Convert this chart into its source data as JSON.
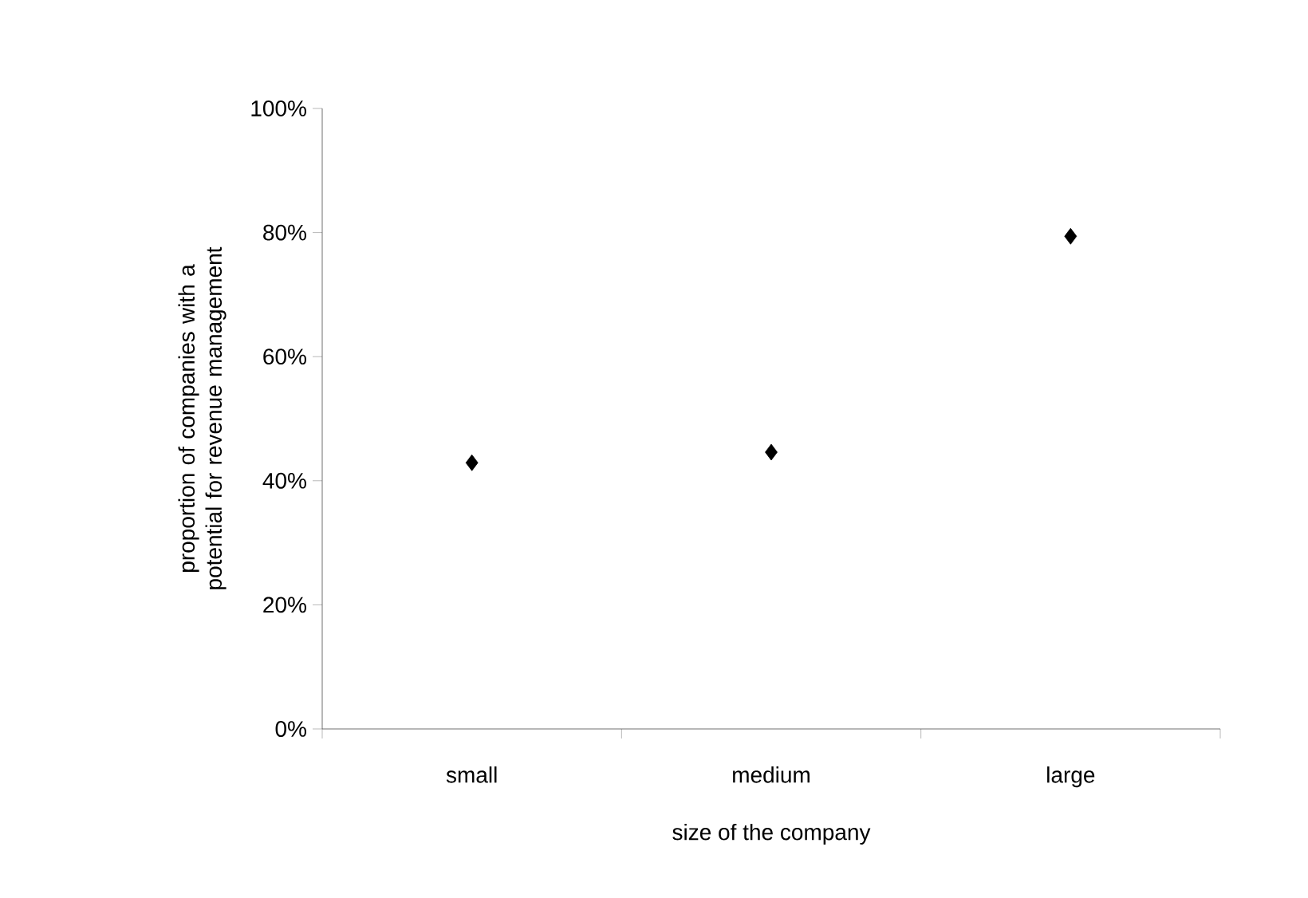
{
  "chart_data": {
    "type": "scatter",
    "xlabel": "size of the company",
    "ylabel": "proportion of companies with a potential for revenue management",
    "categories": [
      "small",
      "medium",
      "large"
    ],
    "values": [
      42.9,
      44.6,
      79.4
    ],
    "color": "#000000",
    "marker": "diamond",
    "ylim": [
      0,
      100
    ],
    "yticks": [
      {
        "value": 0,
        "label": "0%"
      },
      {
        "value": 20,
        "label": "20%"
      },
      {
        "value": 40,
        "label": "40%"
      },
      {
        "value": 60,
        "label": "60%"
      },
      {
        "value": 80,
        "label": "80%"
      },
      {
        "value": 100,
        "label": "100%"
      }
    ],
    "grid": false
  }
}
